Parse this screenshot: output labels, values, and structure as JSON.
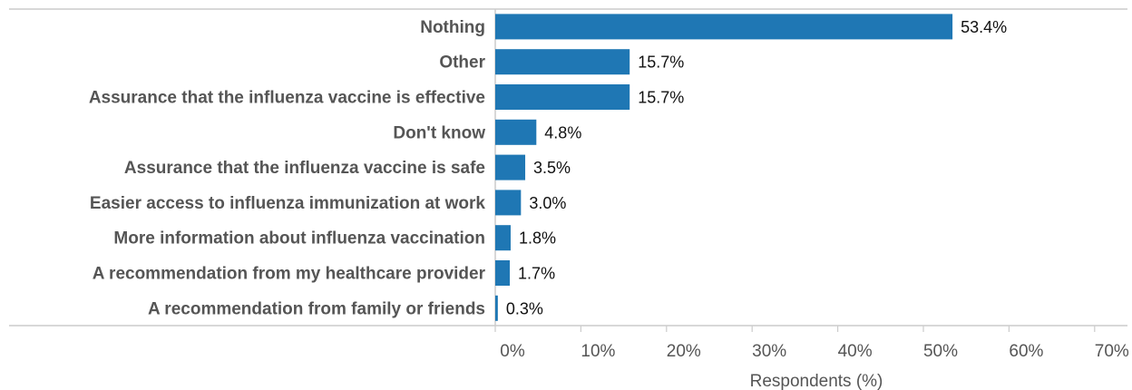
{
  "chart_data": {
    "type": "bar",
    "orientation": "horizontal",
    "categories": [
      "Nothing",
      "Other",
      "Assurance that the influenza vaccine is effective",
      "Don't know",
      "Assurance that the influenza vaccine is safe",
      "Easier access to influenza immunization at work",
      "More information about influenza vaccination",
      "A recommendation from my healthcare provider",
      "A recommendation from family or friends"
    ],
    "values": [
      53.4,
      15.7,
      15.7,
      4.8,
      3.5,
      3.0,
      1.8,
      1.7,
      0.3
    ],
    "value_labels": [
      "53.4%",
      "15.7%",
      "15.7%",
      "4.8%",
      "3.5%",
      "3.0%",
      "1.8%",
      "1.7%",
      "0.3%"
    ],
    "xlabel": "Respondents (%)",
    "ylabel": "",
    "title": "",
    "xlim": [
      0,
      70
    ],
    "xticks": [
      0,
      10,
      20,
      30,
      40,
      50,
      60,
      70
    ],
    "xtick_labels": [
      "0%",
      "10%",
      "20%",
      "30%",
      "40%",
      "50%",
      "60%",
      "70%"
    ],
    "grid": false,
    "legend": "none",
    "colors": {
      "bar": "#1f77b4",
      "axis_line": "#cccccc",
      "category_text": "#555555",
      "value_text": "#111111"
    }
  }
}
